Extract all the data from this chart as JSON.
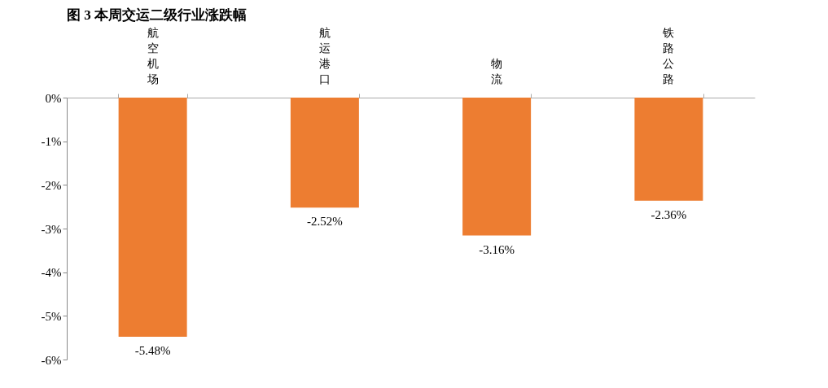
{
  "chart_data": {
    "type": "bar",
    "title": "图 3  本周交运二级行业涨跌幅",
    "categories": [
      "航空机场",
      "航运港口",
      "物流",
      "铁路公路"
    ],
    "values": [
      -5.48,
      -2.52,
      -3.16,
      -2.36
    ],
    "color": "#ed7d31",
    "value_labels": [
      "-5.48%",
      "-2.52%",
      "-3.16%",
      "-2.36%"
    ],
    "ylim": [
      -6,
      0
    ],
    "yticks": [
      {
        "value": 0,
        "label": "0%"
      },
      {
        "value": -1,
        "label": "-1%"
      },
      {
        "value": -2,
        "label": "-2%"
      },
      {
        "value": -3,
        "label": "-3%"
      },
      {
        "value": -4,
        "label": "-4%"
      },
      {
        "value": -5,
        "label": "-5%"
      },
      {
        "value": -6,
        "label": "-6%"
      }
    ],
    "grid": false
  }
}
